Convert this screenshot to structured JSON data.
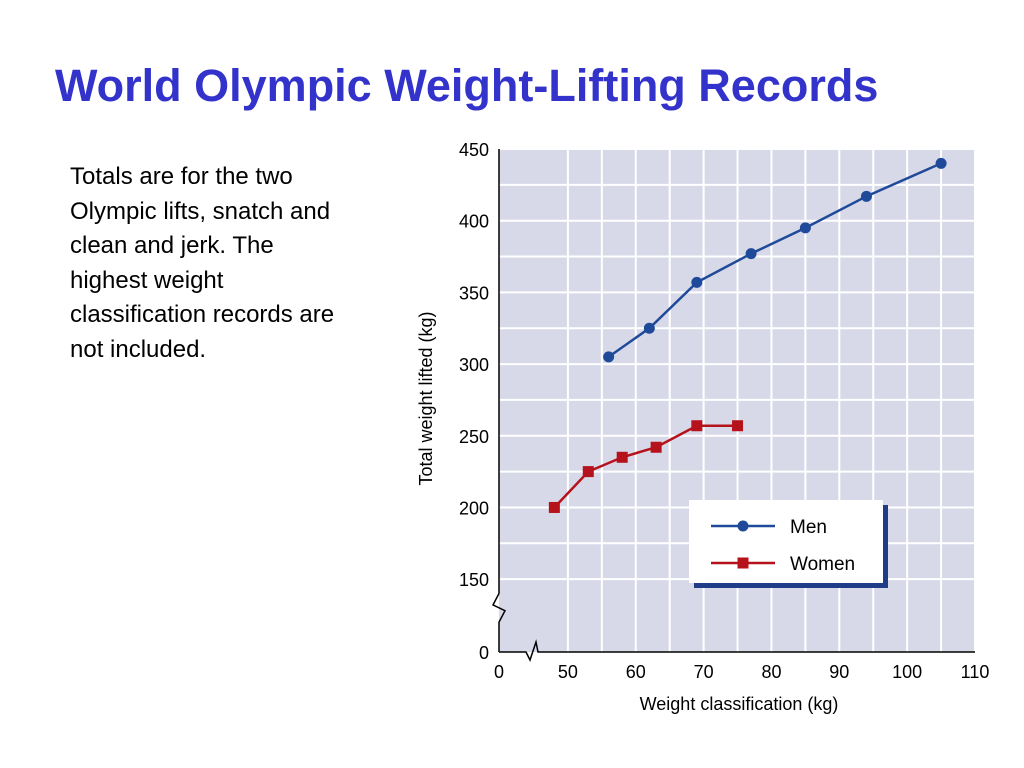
{
  "slide": {
    "title": "World Olympic Weight-Lifting Records",
    "note_lines": [
      "Totals are for the two",
      "Olympic lifts, snatch and",
      "clean and jerk.  The",
      "highest weight",
      "classification records are",
      "not included."
    ]
  },
  "colors": {
    "title": "#3333cc",
    "plot_bg": "#d8d9e8",
    "grid": "#ffffff",
    "men": "#1f4a99",
    "women": "#b5121b",
    "legend_shadow": "#1f3c88"
  },
  "chart_data": {
    "type": "line",
    "title": "",
    "xlabel": "Weight classification (kg)",
    "ylabel": "Total weight lifted (kg)",
    "xlim": [
      0,
      110
    ],
    "ylim": [
      0,
      450
    ],
    "x_ticks": [
      "0",
      "50",
      "60",
      "70",
      "80",
      "90",
      "100",
      "110"
    ],
    "y_ticks": [
      "0",
      "150",
      "200",
      "250",
      "300",
      "350",
      "400",
      "450"
    ],
    "axis_breaks": true,
    "grid": true,
    "legend": "bottom-right",
    "series": [
      {
        "name": "Men",
        "marker": "circle",
        "x": [
          56,
          62,
          69,
          77,
          85,
          94,
          105
        ],
        "y": [
          305,
          325,
          357,
          377,
          395,
          417,
          440
        ]
      },
      {
        "name": "Women",
        "marker": "square",
        "x": [
          48,
          53,
          58,
          63,
          69,
          75
        ],
        "y": [
          200,
          225,
          235,
          242,
          257,
          257
        ]
      }
    ]
  }
}
